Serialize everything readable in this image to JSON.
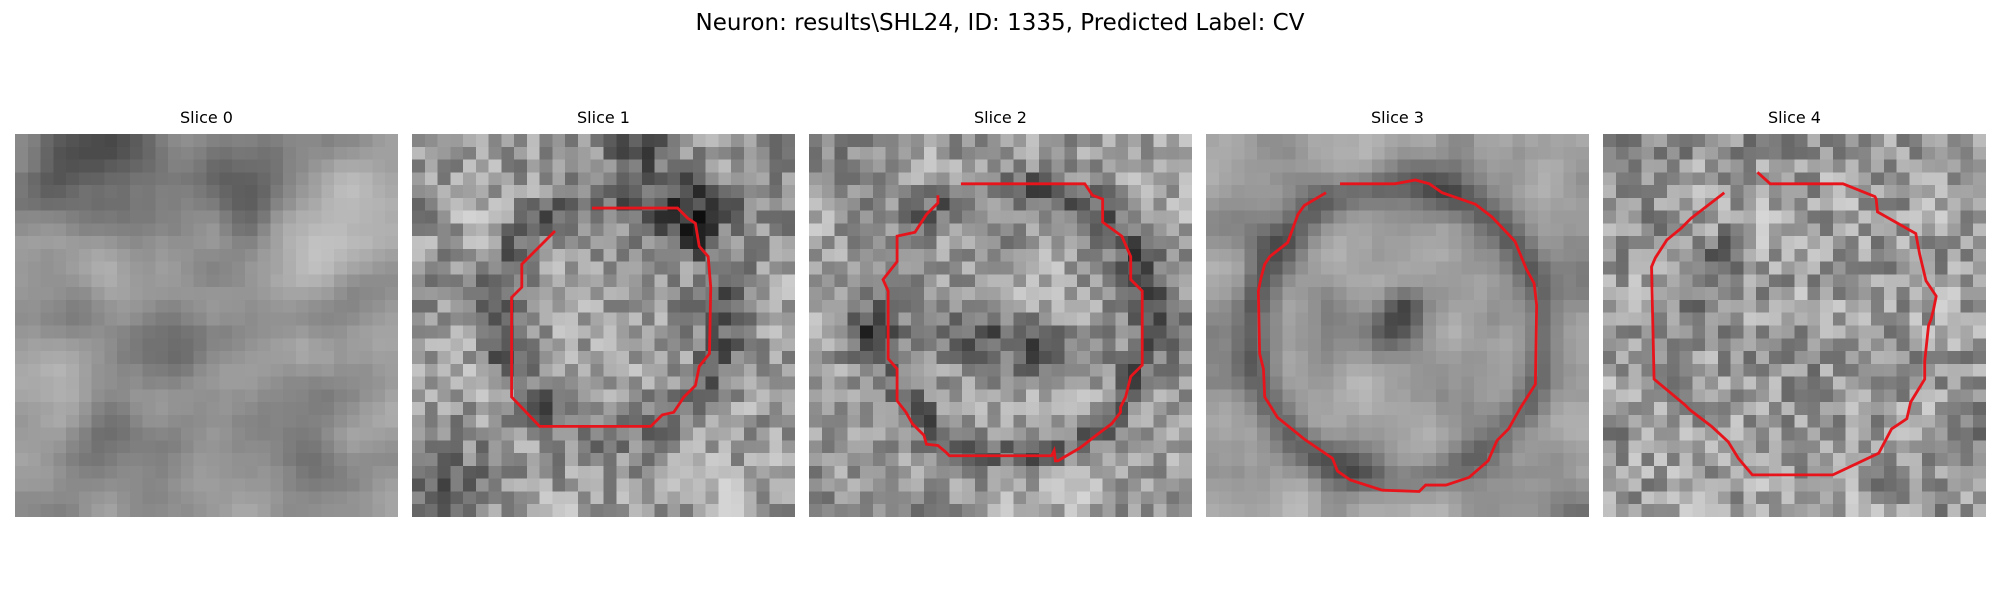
{
  "figure": {
    "title": "Neuron: results\\SHL24, ID: 1335, Predicted Label: CV"
  },
  "panels": [
    {
      "title": "Slice 0",
      "has_contour": false
    },
    {
      "title": "Slice 1",
      "has_contour": true
    },
    {
      "title": "Slice 2",
      "has_contour": true
    },
    {
      "title": "Slice 3",
      "has_contour": true
    },
    {
      "title": "Slice 4",
      "has_contour": true
    }
  ],
  "colors": {
    "contour": "#e8141c",
    "colormap": "gray"
  }
}
